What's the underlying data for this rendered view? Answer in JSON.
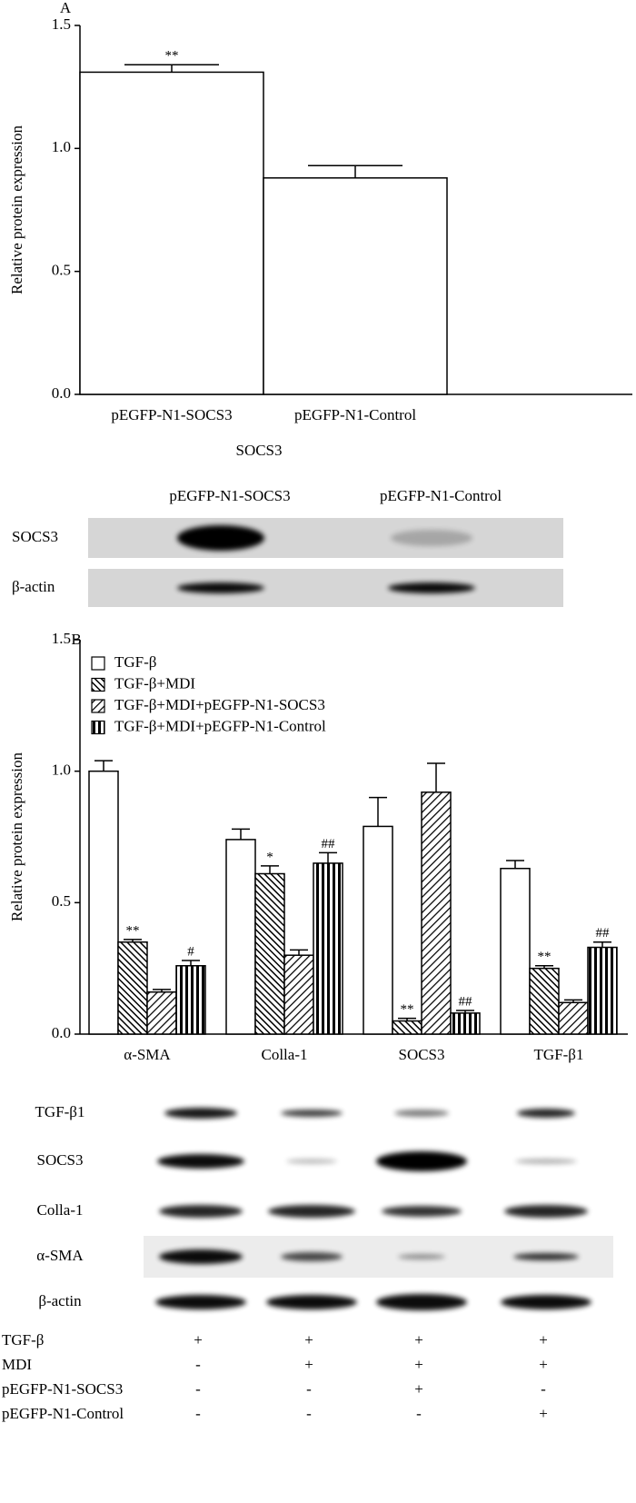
{
  "chart_data": [
    {
      "type": "bar",
      "panel_label": "A",
      "ylabel": "Relative protein expression",
      "xlabel": "SOCS3",
      "categories": [
        "pEGFP-N1-SOCS3",
        "pEGFP-N1-Control"
      ],
      "values": [
        1.31,
        0.88
      ],
      "errors": [
        0.03,
        0.05
      ],
      "annotations": [
        "**",
        null
      ],
      "color": "#ffffff",
      "ylim": [
        0,
        1.5
      ],
      "yticks": [
        {
          "value": 0,
          "label": "0.0"
        },
        {
          "value": 0.5,
          "label": "0.5"
        },
        {
          "value": 1,
          "label": "1.0"
        },
        {
          "value": 1.5,
          "label": "1.5"
        }
      ]
    },
    {
      "type": "bar",
      "panel_label": "B",
      "ylabel": "Relative protein expression",
      "categories": [
        "α-SMA",
        "Colla-1",
        "SOCS3",
        "TGF-β1"
      ],
      "series": [
        {
          "name": "TGF-β",
          "color": "#ffffff",
          "pattern": "none",
          "values": [
            1.0,
            0.74,
            0.79,
            0.63
          ],
          "errors": [
            0.04,
            0.04,
            0.11,
            0.03
          ]
        },
        {
          "name": "TGF-β+MDI",
          "color": "#ffffff",
          "pattern": "back-diagonal",
          "values": [
            0.35,
            0.61,
            0.05,
            0.25
          ],
          "errors": [
            0.01,
            0.03,
            0.01,
            0.01
          ],
          "annotations": [
            "**",
            "*",
            "**",
            "**"
          ]
        },
        {
          "name": "TGF-β+MDI+pEGFP-N1-SOCS3",
          "color": "#ffffff",
          "pattern": "diagonal",
          "values": [
            0.16,
            0.3,
            0.92,
            0.12
          ],
          "errors": [
            0.01,
            0.02,
            0.11,
            0.01
          ]
        },
        {
          "name": "TGF-β+MDI+pEGFP-N1-Control",
          "color": "#ffffff",
          "pattern": "vertical",
          "values": [
            0.26,
            0.65,
            0.08,
            0.33
          ],
          "errors": [
            0.02,
            0.04,
            0.01,
            0.02
          ],
          "annotations": [
            "#",
            "##",
            "##",
            "##"
          ]
        }
      ],
      "legend": "upper left",
      "ylim": [
        0,
        1.5
      ],
      "yticks": [
        {
          "value": 0,
          "label": "0.0"
        },
        {
          "value": 0.5,
          "label": "0.5"
        },
        {
          "value": 1,
          "label": "1.0"
        },
        {
          "value": 1.5,
          "label": "1.5"
        }
      ]
    }
  ],
  "blots": [
    {
      "column_labels": [
        "pEGFP-N1-SOCS3",
        "pEGFP-N1-Control"
      ],
      "row_labels": [
        "SOCS3",
        "β-actin"
      ]
    },
    {
      "row_labels": [
        "TGF-β1",
        "SOCS3",
        "Colla-1",
        "α-SMA",
        "β-actin"
      ],
      "treatments": [
        {
          "label": "TGF-β",
          "signs": [
            "+",
            "+",
            "+",
            "+"
          ]
        },
        {
          "label": "MDI",
          "signs": [
            "-",
            "+",
            "+",
            "+"
          ]
        },
        {
          "label": "pEGFP-N1-SOCS3",
          "signs": [
            "-",
            "-",
            "+",
            "-"
          ]
        },
        {
          "label": "pEGFP-N1-Control",
          "signs": [
            "-",
            "-",
            "-",
            "+"
          ]
        }
      ]
    }
  ]
}
